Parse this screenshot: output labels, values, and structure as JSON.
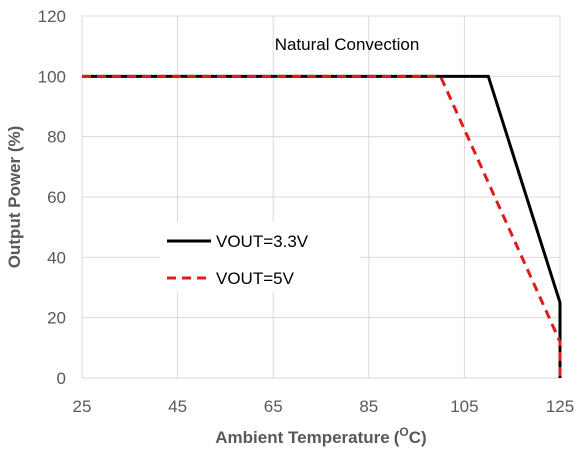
{
  "chart_data": {
    "type": "line",
    "title": "",
    "annotation": "Natural Convection",
    "xlabel": "Ambient Temperature",
    "xlabel_unit_prefix": "(",
    "xlabel_unit_sup": "O",
    "xlabel_unit_suffix": "C)",
    "ylabel": "Output Power (%)",
    "xlim": [
      25,
      125
    ],
    "ylim": [
      0,
      120
    ],
    "xticks": [
      25,
      45,
      65,
      85,
      105,
      125
    ],
    "yticks": [
      0,
      20,
      40,
      60,
      80,
      100,
      120
    ],
    "grid": true,
    "legend_position": "center-left",
    "series": [
      {
        "name": "VOUT=3.3V",
        "color": "#000000",
        "dash": "solid",
        "points": [
          [
            25,
            100
          ],
          [
            110,
            100
          ],
          [
            125,
            25
          ],
          [
            125,
            0
          ]
        ]
      },
      {
        "name": "VOUT=5V",
        "color": "#e01b1b",
        "dash": "dashed",
        "points": [
          [
            25,
            100
          ],
          [
            100,
            100
          ],
          [
            125,
            12
          ],
          [
            125,
            0
          ]
        ]
      }
    ]
  }
}
